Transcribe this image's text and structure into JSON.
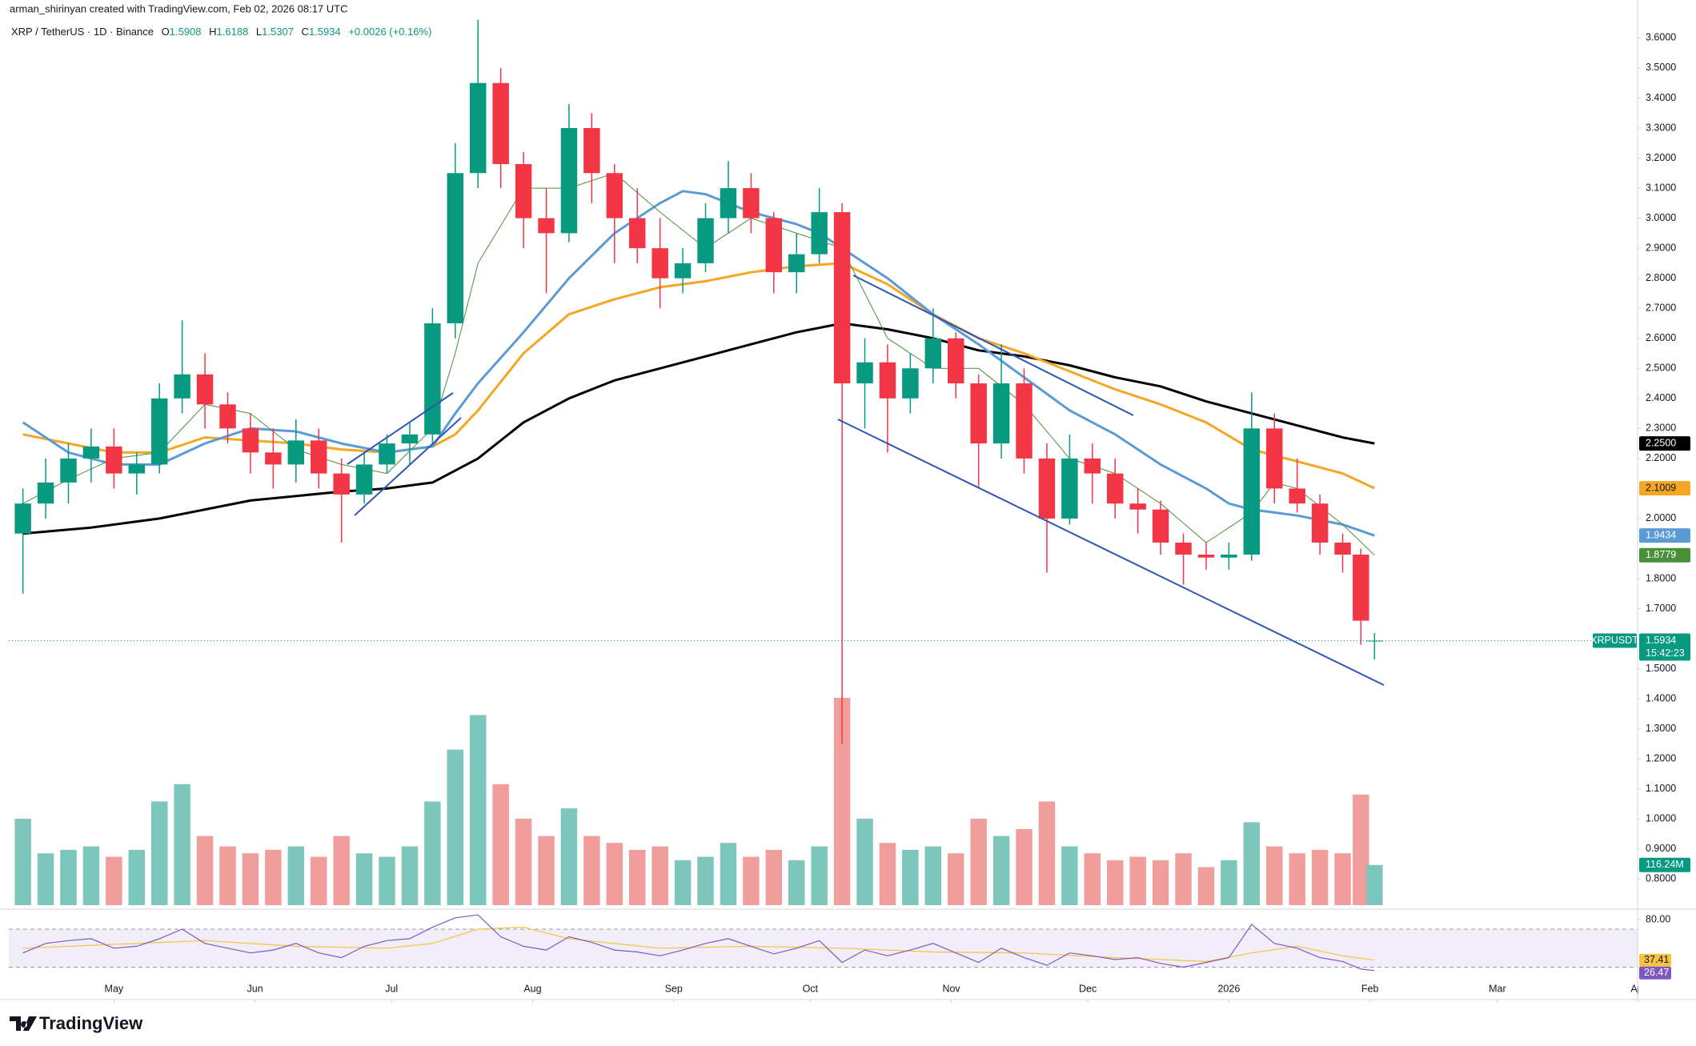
{
  "header": {
    "author_line": "arman_shirinyan created with TradingView.com, Feb 02, 2026 08:17 UTC",
    "symbol": "XRP / TetherUS · 1D · Binance",
    "ohlc_prefixes": [
      "O",
      "H",
      "L",
      "C"
    ],
    "change_label": "+0.0026 (+0.16%)"
  },
  "chart_data": {
    "type": "candlestick",
    "x": [
      -20,
      -15,
      -10,
      -5,
      0,
      5,
      10,
      15,
      20,
      25,
      30,
      35,
      40,
      45,
      50,
      55,
      60,
      65,
      70,
      75,
      80,
      85,
      90,
      95,
      100,
      105,
      110,
      115,
      120,
      125,
      130,
      135,
      140,
      145,
      150,
      155,
      160,
      165,
      170,
      175,
      180,
      185,
      190,
      195,
      200,
      205,
      210,
      215,
      220,
      225,
      230,
      235,
      240,
      245,
      250,
      255,
      260,
      265,
      270,
      274,
      277
    ],
    "open": [
      1.95,
      2.05,
      2.12,
      2.2,
      2.24,
      2.15,
      2.18,
      2.4,
      2.48,
      2.38,
      2.3,
      2.22,
      2.18,
      2.26,
      2.15,
      2.08,
      2.18,
      2.25,
      2.28,
      2.65,
      3.15,
      3.45,
      3.18,
      3.0,
      2.95,
      3.3,
      3.15,
      3.0,
      2.9,
      2.8,
      2.85,
      3.0,
      3.1,
      3.0,
      2.82,
      2.88,
      3.02,
      2.45,
      2.52,
      2.4,
      2.5,
      2.6,
      2.45,
      2.25,
      2.45,
      2.2,
      2.0,
      2.2,
      2.15,
      2.05,
      2.03,
      1.92,
      1.88,
      1.87,
      1.88,
      2.3,
      2.1,
      2.05,
      1.92,
      1.88,
      1.5908
    ],
    "high": [
      2.1,
      2.2,
      2.25,
      2.3,
      2.3,
      2.22,
      2.45,
      2.66,
      2.55,
      2.42,
      2.35,
      2.3,
      2.33,
      2.3,
      2.2,
      2.22,
      2.28,
      2.32,
      2.7,
      3.25,
      3.66,
      3.5,
      3.22,
      3.1,
      3.38,
      3.35,
      3.18,
      3.1,
      3.0,
      2.9,
      3.05,
      3.19,
      3.15,
      3.02,
      2.95,
      3.1,
      3.05,
      2.6,
      2.58,
      2.55,
      2.7,
      2.62,
      2.48,
      2.58,
      2.5,
      2.25,
      2.28,
      2.25,
      2.2,
      2.1,
      2.06,
      1.95,
      1.92,
      1.92,
      2.42,
      2.35,
      2.2,
      2.08,
      1.95,
      1.9,
      1.6188
    ],
    "low": [
      1.75,
      2.0,
      2.05,
      2.12,
      2.1,
      2.08,
      2.15,
      2.35,
      2.3,
      2.25,
      2.15,
      2.1,
      2.12,
      2.1,
      1.92,
      2.05,
      2.15,
      2.18,
      2.25,
      2.6,
      3.1,
      3.1,
      2.9,
      2.75,
      2.92,
      3.05,
      2.85,
      2.85,
      2.7,
      2.75,
      2.82,
      2.95,
      2.95,
      2.75,
      2.75,
      2.85,
      1.25,
      2.3,
      2.22,
      2.35,
      2.45,
      2.4,
      2.1,
      2.2,
      2.15,
      1.82,
      1.98,
      2.05,
      2.0,
      1.95,
      1.88,
      1.78,
      1.83,
      1.83,
      1.86,
      2.05,
      2.02,
      1.88,
      1.82,
      1.58,
      1.5307
    ],
    "close": [
      2.05,
      2.12,
      2.2,
      2.24,
      2.15,
      2.18,
      2.4,
      2.48,
      2.38,
      2.3,
      2.22,
      2.18,
      2.26,
      2.15,
      2.08,
      2.18,
      2.25,
      2.28,
      2.65,
      3.15,
      3.45,
      3.18,
      3.0,
      2.95,
      3.3,
      3.15,
      3.0,
      2.9,
      2.8,
      2.85,
      3.0,
      3.1,
      3.0,
      2.82,
      2.88,
      3.02,
      2.45,
      2.52,
      2.4,
      2.5,
      2.6,
      2.45,
      2.25,
      2.45,
      2.2,
      2.0,
      2.2,
      2.15,
      2.05,
      2.03,
      1.92,
      1.88,
      1.87,
      1.88,
      2.3,
      2.1,
      2.05,
      1.92,
      1.88,
      1.66,
      1.5934
    ],
    "up_color": "#089981",
    "down_color": "#f23645",
    "xlim": [
      -23.1,
      334.8
    ],
    "xticks": [
      {
        "value": 0,
        "label": "May"
      },
      {
        "value": 31,
        "label": "Jun"
      },
      {
        "value": 61,
        "label": "Jul"
      },
      {
        "value": 92,
        "label": "Aug"
      },
      {
        "value": 123,
        "label": "Sep"
      },
      {
        "value": 153,
        "label": "Oct"
      },
      {
        "value": 184,
        "label": "Nov"
      },
      {
        "value": 214,
        "label": "Dec"
      },
      {
        "value": 245,
        "label": "2026"
      },
      {
        "value": 276,
        "label": "Feb"
      },
      {
        "value": 304,
        "label": "Mar"
      },
      {
        "value": 335,
        "label": "Apr"
      }
    ],
    "ylim": [
      0.713,
      3.673
    ],
    "yticks": [
      {
        "value": 0.8,
        "label": "0.8000"
      },
      {
        "value": 0.9,
        "label": "0.9000"
      },
      {
        "value": 1.0,
        "label": "1.0000"
      },
      {
        "value": 1.1,
        "label": "1.1000"
      },
      {
        "value": 1.2,
        "label": "1.2000"
      },
      {
        "value": 1.3,
        "label": "1.3000"
      },
      {
        "value": 1.4,
        "label": "1.4000"
      },
      {
        "value": 1.5,
        "label": "1.5000"
      },
      {
        "value": 1.7,
        "label": "1.7000"
      },
      {
        "value": 1.8,
        "label": "1.8000"
      },
      {
        "value": 2.0,
        "label": "2.0000"
      },
      {
        "value": 2.2,
        "label": "2.2000"
      },
      {
        "value": 2.3,
        "label": "2.3000"
      },
      {
        "value": 2.4,
        "label": "2.4000"
      },
      {
        "value": 2.5,
        "label": "2.5000"
      },
      {
        "value": 2.6,
        "label": "2.6000"
      },
      {
        "value": 2.7,
        "label": "2.7000"
      },
      {
        "value": 2.8,
        "label": "2.8000"
      },
      {
        "value": 2.9,
        "label": "2.9000"
      },
      {
        "value": 3.0,
        "label": "3.0000"
      },
      {
        "value": 3.1,
        "label": "3.1000"
      },
      {
        "value": 3.2,
        "label": "3.2000"
      },
      {
        "value": 3.3,
        "label": "3.3000"
      },
      {
        "value": 3.4,
        "label": "3.4000"
      },
      {
        "value": 3.5,
        "label": "3.5000"
      },
      {
        "value": 3.6,
        "label": "3.6000"
      }
    ],
    "grid": false,
    "symbol_label": "XRPUSDT",
    "countdown": "15:42:23",
    "last_color": "#089981",
    "moving_averages": [
      {
        "color": "#000000",
        "width": 3,
        "last_label": "2.2500",
        "label_color": "#ffffff",
        "x": [
          -20,
          -5,
          10,
          30,
          50,
          60,
          70,
          80,
          90,
          100,
          110,
          120,
          130,
          140,
          150,
          160,
          170,
          180,
          190,
          200,
          210,
          220,
          230,
          240,
          250,
          260,
          270,
          277
        ],
        "values": [
          1.95,
          1.97,
          2.0,
          2.06,
          2.09,
          2.1,
          2.12,
          2.2,
          2.32,
          2.4,
          2.46,
          2.5,
          2.54,
          2.58,
          2.62,
          2.65,
          2.63,
          2.6,
          2.56,
          2.54,
          2.51,
          2.47,
          2.44,
          2.39,
          2.35,
          2.31,
          2.27,
          2.25
        ]
      },
      {
        "color": "#f5a623",
        "width": 3,
        "last_label": "2.1009",
        "label_color": "#131722",
        "x": [
          -20,
          0,
          10,
          20,
          30,
          40,
          50,
          60,
          70,
          75,
          80,
          90,
          100,
          110,
          120,
          130,
          140,
          150,
          160,
          170,
          180,
          190,
          200,
          210,
          220,
          230,
          240,
          250,
          255,
          260,
          270,
          277
        ],
        "values": [
          2.28,
          2.22,
          2.22,
          2.27,
          2.26,
          2.25,
          2.23,
          2.22,
          2.24,
          2.28,
          2.36,
          2.55,
          2.68,
          2.73,
          2.77,
          2.79,
          2.82,
          2.84,
          2.85,
          2.78,
          2.68,
          2.6,
          2.55,
          2.49,
          2.43,
          2.38,
          2.32,
          2.23,
          2.21,
          2.19,
          2.15,
          2.1009
        ]
      },
      {
        "color": "#5b9bd5",
        "width": 3,
        "last_label": "1.9434",
        "label_color": "#ffffff",
        "x": [
          -20,
          -10,
          0,
          10,
          20,
          30,
          40,
          50,
          60,
          70,
          75,
          80,
          90,
          100,
          110,
          120,
          125,
          130,
          140,
          150,
          155,
          160,
          170,
          180,
          190,
          200,
          210,
          220,
          230,
          240,
          245,
          250,
          255,
          260,
          270,
          277
        ],
        "values": [
          2.32,
          2.22,
          2.18,
          2.18,
          2.25,
          2.3,
          2.29,
          2.25,
          2.22,
          2.24,
          2.35,
          2.45,
          2.62,
          2.8,
          2.95,
          3.05,
          3.09,
          3.08,
          3.02,
          2.98,
          2.95,
          2.9,
          2.8,
          2.68,
          2.58,
          2.47,
          2.36,
          2.28,
          2.18,
          2.1,
          2.05,
          2.03,
          2.02,
          2.01,
          1.98,
          1.9434
        ]
      },
      {
        "color": "#4a8f3a",
        "width": 1,
        "last_label": "1.8779",
        "label_color": "#ffffff",
        "x": [
          -20,
          -10,
          0,
          10,
          20,
          30,
          40,
          50,
          60,
          70,
          75,
          80,
          90,
          100,
          110,
          120,
          130,
          140,
          150,
          160,
          170,
          180,
          190,
          200,
          210,
          220,
          230,
          240,
          250,
          255,
          260,
          270,
          277
        ],
        "values": [
          2.05,
          2.13,
          2.2,
          2.22,
          2.38,
          2.35,
          2.23,
          2.18,
          2.15,
          2.3,
          2.55,
          2.85,
          3.1,
          3.1,
          3.15,
          3.02,
          2.9,
          3.0,
          2.95,
          2.9,
          2.6,
          2.5,
          2.5,
          2.38,
          2.2,
          2.15,
          2.05,
          1.92,
          2.02,
          2.12,
          2.1,
          1.98,
          1.8779
        ]
      }
    ],
    "volume": {
      "ylim": [
        0,
        690
      ],
      "last_label": "116.24M",
      "up_color": "#7cc6bb",
      "down_color": "#f19d9b",
      "values": [
        250,
        150,
        160,
        170,
        140,
        160,
        300,
        350,
        200,
        170,
        150,
        160,
        170,
        140,
        200,
        150,
        140,
        170,
        300,
        450,
        550,
        350,
        250,
        200,
        280,
        200,
        180,
        160,
        170,
        130,
        140,
        180,
        140,
        160,
        130,
        170,
        600,
        250,
        180,
        160,
        170,
        150,
        250,
        200,
        220,
        300,
        170,
        150,
        130,
        140,
        130,
        150,
        110,
        130,
        240,
        170,
        150,
        160,
        150,
        320,
        116.24
      ]
    },
    "rsi": {
      "ylim": [
        22,
        86
      ],
      "yticks": [
        {
          "value": 80,
          "label": "80.00"
        }
      ],
      "bands": [
        30,
        70
      ],
      "color": "#7e57c2",
      "values": [
        45,
        55,
        58,
        60,
        50,
        52,
        60,
        70,
        55,
        50,
        45,
        48,
        55,
        45,
        40,
        52,
        58,
        60,
        72,
        82,
        85,
        62,
        52,
        48,
        62,
        56,
        48,
        46,
        42,
        48,
        55,
        60,
        52,
        44,
        50,
        58,
        35,
        48,
        42,
        48,
        55,
        45,
        35,
        50,
        40,
        32,
        45,
        42,
        38,
        40,
        34,
        30,
        35,
        40,
        75,
        55,
        50,
        40,
        36,
        28,
        26.47
      ],
      "ma": {
        "color": "#f5c242",
        "x": [
          -20,
          0,
          20,
          40,
          60,
          70,
          80,
          90,
          100,
          120,
          140,
          160,
          180,
          200,
          220,
          240,
          250,
          260,
          270,
          277
        ],
        "values": [
          50,
          54,
          58,
          52,
          50,
          55,
          70,
          72,
          60,
          50,
          52,
          50,
          46,
          45,
          40,
          36,
          45,
          52,
          42,
          37.41
        ]
      }
    }
  },
  "footer": {
    "brand": "TradingView"
  }
}
